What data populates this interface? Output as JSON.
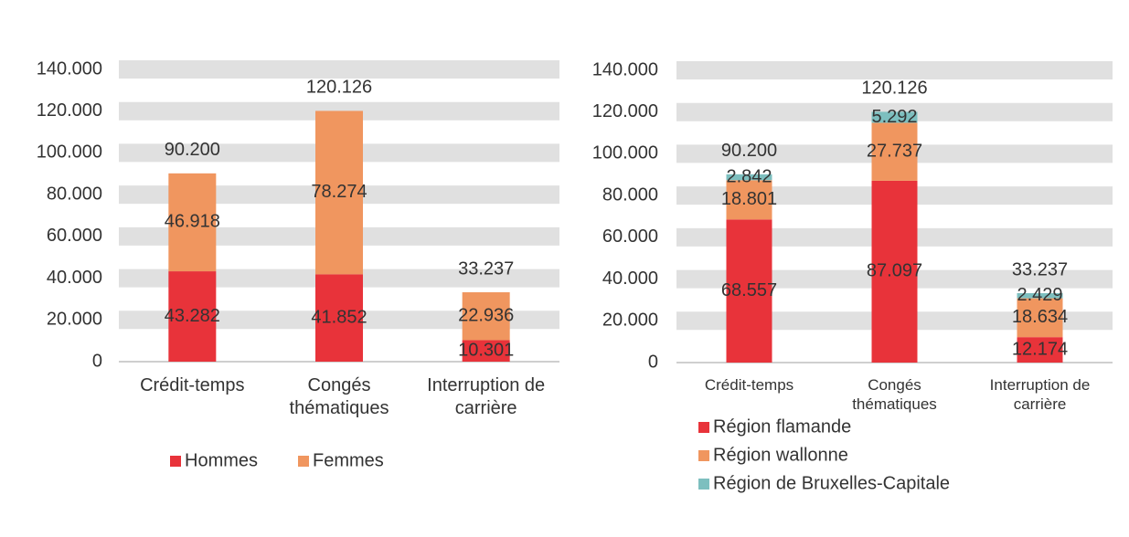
{
  "chart_data": [
    {
      "type": "stacked-bar",
      "categories": [
        "Crédit-temps",
        "Congés thématiques",
        "Interruption de carrière"
      ],
      "series": [
        {
          "name": "Hommes",
          "color": "#e8333a",
          "values": [
            43282,
            41852,
            10301
          ],
          "value_labels": [
            "43.282",
            "41.852",
            "10.301"
          ]
        },
        {
          "name": "Femmes",
          "color": "#f0965f",
          "values": [
            46918,
            78274,
            22936
          ],
          "value_labels": [
            "46.918",
            "78.274",
            "22.936"
          ]
        }
      ],
      "totals": {
        "values": [
          90200,
          120126,
          33237
        ],
        "value_labels": [
          "90.200",
          "120.126",
          "33.237"
        ]
      },
      "ylim": [
        0,
        140000
      ],
      "yticks": [
        0,
        {
          "value": 20000,
          "label": "20.000"
        },
        {
          "value": 40000,
          "label": "40.000"
        },
        {
          "value": 60000,
          "label": "60.000"
        },
        {
          "value": 80000,
          "label": "80.000"
        },
        {
          "value": 100000,
          "label": "100.000"
        },
        {
          "value": 120000,
          "label": "120.000"
        },
        {
          "value": 140000,
          "label": "140.000"
        }
      ],
      "grid": true,
      "legend": "bottom"
    },
    {
      "type": "stacked-bar",
      "categories": [
        "Crédit-temps",
        "Congés thématiques",
        "Interruption de carrière"
      ],
      "series": [
        {
          "name": "Région flamande",
          "color": "#e8333a",
          "values": [
            68557,
            87097,
            12174
          ],
          "value_labels": [
            "68.557",
            "87.097",
            "12.174"
          ]
        },
        {
          "name": "Région wallonne",
          "color": "#f0965f",
          "values": [
            18801,
            27737,
            18634
          ],
          "value_labels": [
            "18.801",
            "27.737",
            "18.634"
          ]
        },
        {
          "name": "Région de Bruxelles-Capitale",
          "color": "#7dbfbf",
          "values": [
            2842,
            5292,
            2429
          ],
          "value_labels": [
            "2.842",
            "5.292",
            "2.429"
          ]
        }
      ],
      "totals": {
        "values": [
          90200,
          120126,
          33237
        ],
        "value_labels": [
          "90.200",
          "120.126",
          "33.237"
        ]
      },
      "ylim": [
        0,
        140000
      ],
      "yticks": [
        0,
        {
          "value": 20000,
          "label": "20.000"
        },
        {
          "value": 40000,
          "label": "40.000"
        },
        {
          "value": 60000,
          "label": "60.000"
        },
        {
          "value": 80000,
          "label": "80.000"
        },
        {
          "value": 100000,
          "label": "100.000"
        },
        {
          "value": 120000,
          "label": "120.000"
        },
        {
          "value": 140000,
          "label": "140.000"
        }
      ],
      "grid": true,
      "legend": "bottom"
    }
  ]
}
